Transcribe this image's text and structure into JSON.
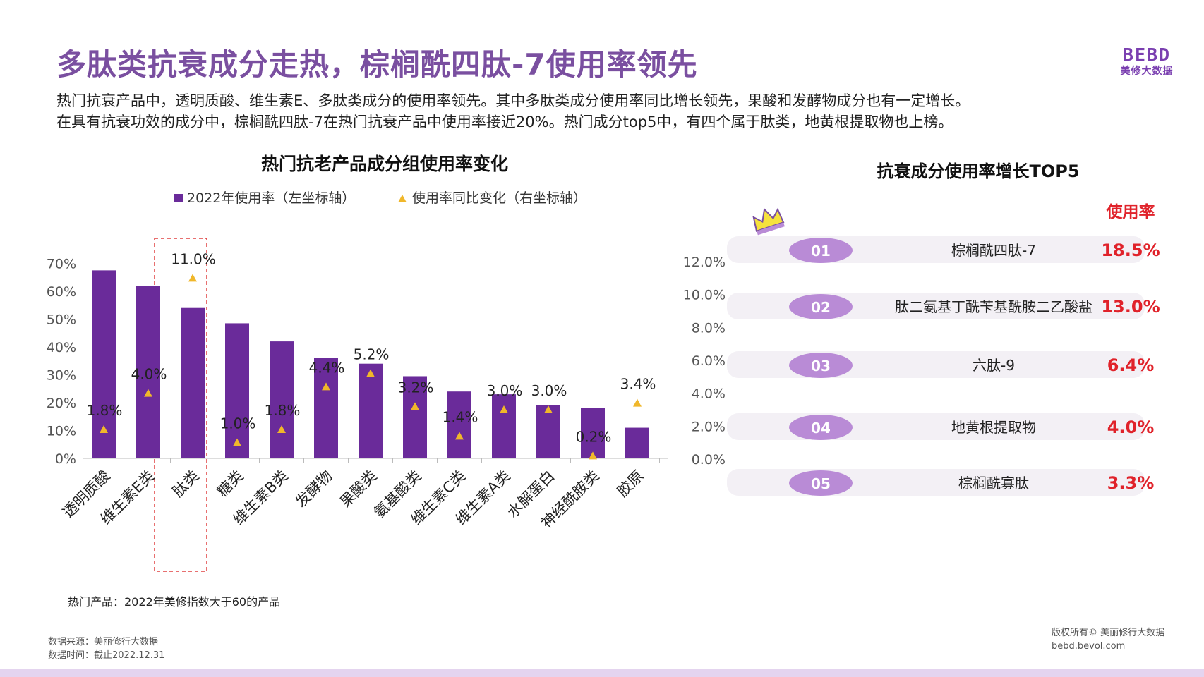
{
  "header": {
    "title": "多肽类抗衰成分走热，棕榈酰四肽-7使用率领先",
    "logo_mark": "BEBD",
    "logo_sub": "美修大数据"
  },
  "description": [
    "热门抗衰产品中，透明质酸、维生素E、多肽类成分的使用率领先。其中多肽类成分使用率同比增长领先，果酸和发酵物成分也有一定增长。",
    "在具有抗衰功效的成分中，棕榈酰四肽-7在热门抗衰产品中使用率接近20%。热门成分top5中，有四个属于肽类，地黄根提取物也上榜。"
  ],
  "chart_data": [
    {
      "type": "bar",
      "title": "热门抗老产品成分组使用率变化",
      "categories": [
        "透明质酸",
        "维生素E类",
        "肽类",
        "糖类",
        "维生素B类",
        "发酵物",
        "果酸类",
        "氨基酸类",
        "维生素C类",
        "维生素A类",
        "水解蛋白",
        "神经酰胺类",
        "胶原"
      ],
      "series": [
        {
          "name": "2022年使用率（左坐标轴）",
          "type": "bar",
          "axis": "left",
          "values": [
            67.5,
            62,
            54,
            48.5,
            42,
            36,
            34,
            29.5,
            24,
            23,
            19,
            18,
            11
          ]
        },
        {
          "name": "使用率同比变化（右坐标轴）",
          "type": "marker",
          "axis": "right",
          "values": [
            1.8,
            4.0,
            11.0,
            1.0,
            1.8,
            4.4,
            5.2,
            3.2,
            1.4,
            3.0,
            3.0,
            0.2,
            3.4
          ],
          "labels": [
            "1.8%",
            "4.0%",
            "11.0%",
            "1.0%",
            "1.8%",
            "4.4%",
            "5.2%",
            "3.2%",
            "1.4%",
            "3.0%",
            "3.0%",
            "0.2%",
            "3.4%"
          ]
        }
      ],
      "left_axis": {
        "min": 0,
        "max": 70,
        "ticks": [
          "0%",
          "10%",
          "20%",
          "30%",
          "40%",
          "50%",
          "60%",
          "70%"
        ]
      },
      "right_axis": {
        "min": 0,
        "max": 12,
        "ticks": [
          "0.0%",
          "2.0%",
          "4.0%",
          "6.0%",
          "8.0%",
          "10.0%",
          "12.0%"
        ]
      },
      "highlight_category": "肽类",
      "legend_position": "top",
      "colors": {
        "bar": "#6a2b9a",
        "marker": "#f0b72a",
        "highlight_box": "#e04040"
      }
    },
    {
      "type": "table",
      "title": "抗衰成分使用率增长TOP5",
      "value_header": "使用率",
      "rows": [
        {
          "rank": "01",
          "name": "棕榈酰四肽-7",
          "value": 18.5,
          "value_label": "18.5%"
        },
        {
          "rank": "02",
          "name": "肽二氨基丁酰苄基酰胺二乙酸盐",
          "value": 13.0,
          "value_label": "13.0%"
        },
        {
          "rank": "03",
          "name": "六肽-9",
          "value": 6.4,
          "value_label": "6.4%"
        },
        {
          "rank": "04",
          "name": "地黄根提取物",
          "value": 4.0,
          "value_label": "4.0%"
        },
        {
          "rank": "05",
          "name": "棕榈酰寡肽",
          "value": 3.3,
          "value_label": "3.3%"
        }
      ],
      "colors": {
        "badge": "#b98bd6",
        "value": "#e0222a",
        "row_bg": "#f3f0f5",
        "crown": "#f6e23c"
      }
    }
  ],
  "footer": {
    "note": "热门产品：2022年美修指数大于60的产品",
    "source_line1": "数据来源：美丽修行大数据",
    "source_line2": "数据时间：截止2022.12.31",
    "copyright_line1": "版权所有© 美丽修行大数据",
    "copyright_line2": "bebd.bevol.com"
  }
}
